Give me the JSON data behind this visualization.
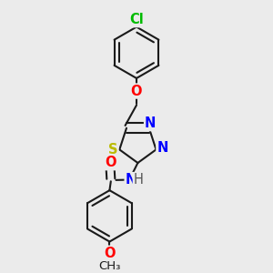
{
  "bg_color": "#ebebeb",
  "bond_color": "#1a1a1a",
  "atom_colors": {
    "Cl": "#00bb00",
    "O": "#ff0000",
    "S": "#bbbb00",
    "N": "#0000ff",
    "H": "#555555",
    "C": "#1a1a1a"
  },
  "bond_width": 1.5,
  "font_size": 10.5
}
